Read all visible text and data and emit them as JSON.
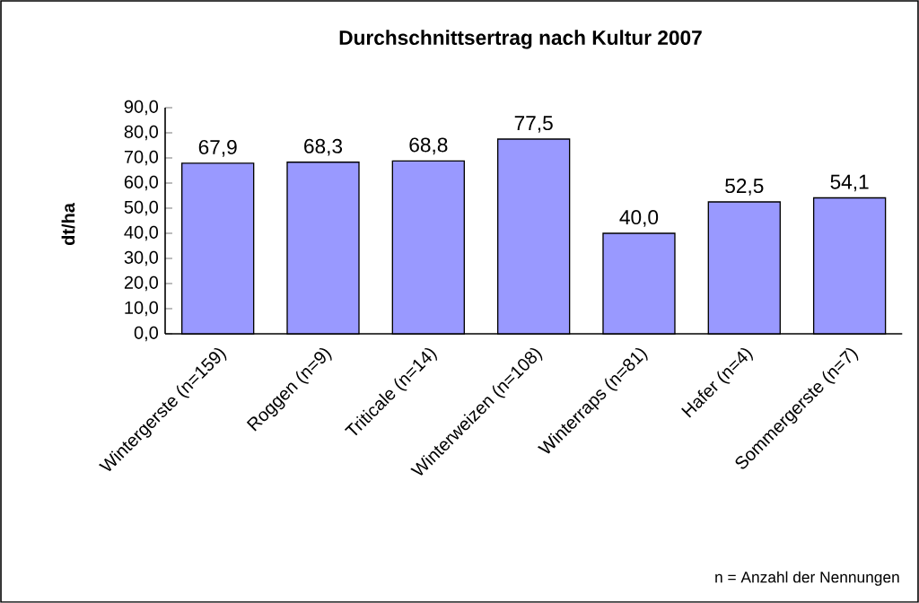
{
  "chart_data": {
    "type": "bar",
    "title": "Durchschnittsertrag nach Kultur 2007",
    "ylabel": "dt/ha",
    "categories": [
      "Wintergerste (n=159)",
      "Roggen (n=9)",
      "Triticale (n=14)",
      "Winterweizen (n=108)",
      "Winterraps (n=81)",
      "Hafer (n=4)",
      "Sommergerste (n=7)"
    ],
    "values": [
      67.9,
      68.3,
      68.8,
      77.5,
      40.0,
      52.5,
      54.1
    ],
    "value_labels": [
      "67,9",
      "68,3",
      "68,8",
      "77,5",
      "40,0",
      "52,5",
      "54,1"
    ],
    "color": "#9999ff",
    "ylim": [
      0,
      90
    ],
    "yticks": [
      {
        "value": 0,
        "label": "0,0"
      },
      {
        "value": 10,
        "label": "10,0"
      },
      {
        "value": 20,
        "label": "20,0"
      },
      {
        "value": 30,
        "label": "30,0"
      },
      {
        "value": 40,
        "label": "40,0"
      },
      {
        "value": 50,
        "label": "50,0"
      },
      {
        "value": 60,
        "label": "60,0"
      },
      {
        "value": 70,
        "label": "70,0"
      },
      {
        "value": 80,
        "label": "80,0"
      },
      {
        "value": 90,
        "label": "90,0"
      }
    ],
    "grid": false,
    "annotations": [
      "n = Anzahl der Nennungen"
    ]
  }
}
